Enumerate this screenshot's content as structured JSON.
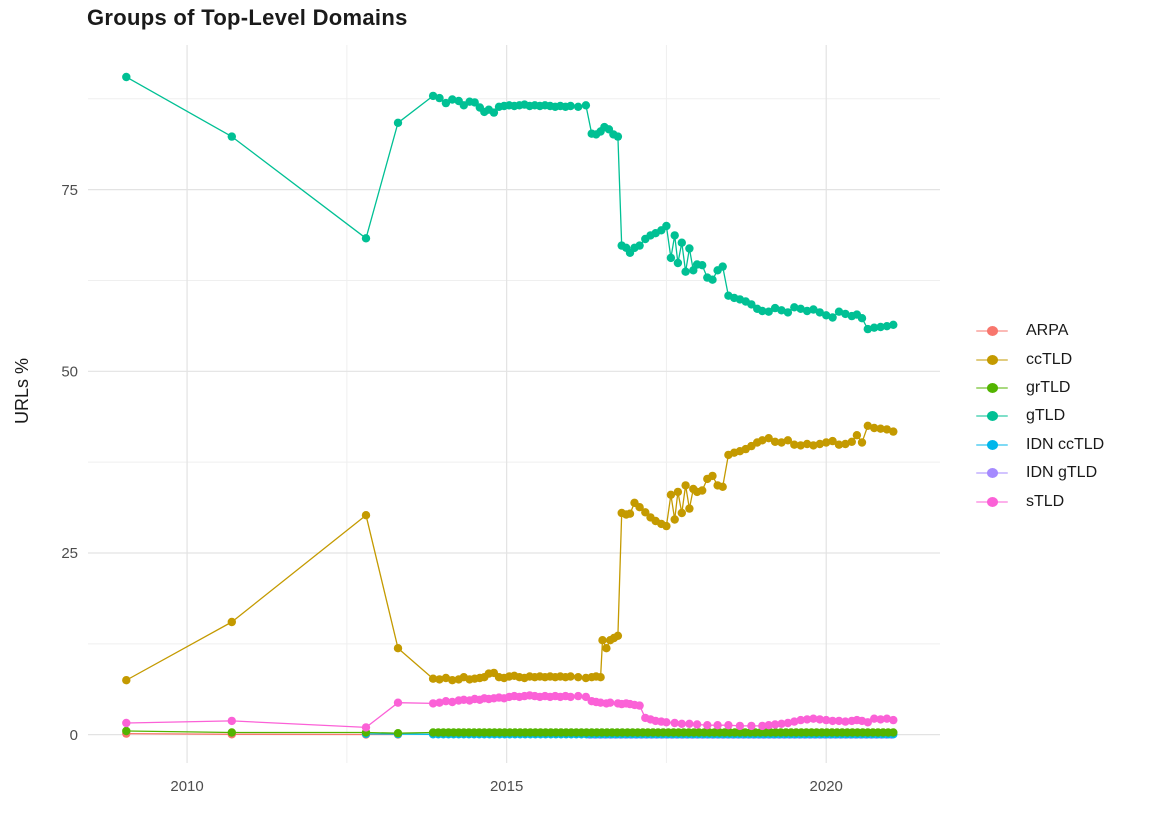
{
  "chart_data": {
    "type": "line",
    "title": "Groups of Top-Level Domains",
    "xlabel": "",
    "ylabel": "URLs %",
    "xlim": [
      2008.45,
      2021.78
    ],
    "ylim": [
      -3.9,
      94.9
    ],
    "grid": "major+minor",
    "legend_position": "right",
    "x_ticks": {
      "major": [
        2010,
        2015,
        2020
      ],
      "minor": [
        2012.5,
        2017.5
      ],
      "labels": [
        "2010",
        "2015",
        "2020"
      ]
    },
    "y_ticks": {
      "major": [
        0,
        25,
        50,
        75
      ],
      "minor": [
        12.5,
        37.5,
        62.5,
        87.5
      ],
      "labels": [
        "0",
        "25",
        "50",
        "75"
      ]
    },
    "legend_order": [
      "ARPA",
      "ccTLD",
      "grTLD",
      "gTLD",
      "IDN ccTLD",
      "IDN gTLD",
      "sTLD"
    ],
    "draw_order": [
      "ARPA",
      "IDN gTLD",
      "IDN ccTLD",
      "grTLD",
      "sTLD",
      "ccTLD",
      "gTLD"
    ],
    "series": [
      {
        "label": "ARPA",
        "color": "#F8766D",
        "points": [
          [
            2009.05,
            0.15
          ],
          [
            2010.7,
            0.05
          ],
          [
            2012.8,
            0.02
          ],
          [
            2013.3,
            0.02
          ]
        ]
      },
      {
        "label": "ccTLD",
        "color": "#C49A00",
        "points": [
          [
            2009.05,
            7.5
          ],
          [
            2010.7,
            15.5
          ],
          [
            2012.8,
            30.2
          ],
          [
            2013.3,
            11.9
          ],
          [
            2013.85,
            7.7
          ],
          [
            2013.95,
            7.6
          ],
          [
            2014.05,
            7.8
          ],
          [
            2014.15,
            7.5
          ],
          [
            2014.25,
            7.6
          ],
          [
            2014.33,
            7.9
          ],
          [
            2014.42,
            7.6
          ],
          [
            2014.5,
            7.7
          ],
          [
            2014.58,
            7.8
          ],
          [
            2014.65,
            7.9
          ],
          [
            2014.72,
            8.4
          ],
          [
            2014.8,
            8.5
          ],
          [
            2014.88,
            7.9
          ],
          [
            2014.96,
            7.8
          ],
          [
            2015.04,
            8.0
          ],
          [
            2015.12,
            8.1
          ],
          [
            2015.2,
            7.9
          ],
          [
            2015.28,
            7.8
          ],
          [
            2015.36,
            8.0
          ],
          [
            2015.44,
            7.9
          ],
          [
            2015.52,
            8.0
          ],
          [
            2015.6,
            7.9
          ],
          [
            2015.68,
            8.0
          ],
          [
            2015.76,
            7.9
          ],
          [
            2015.84,
            8.0
          ],
          [
            2015.92,
            7.9
          ],
          [
            2016.0,
            8.0
          ],
          [
            2016.12,
            7.9
          ],
          [
            2016.24,
            7.8
          ],
          [
            2016.33,
            7.9
          ],
          [
            2016.4,
            8.0
          ],
          [
            2016.47,
            7.9
          ],
          [
            2016.5,
            13.0
          ],
          [
            2016.56,
            11.9
          ],
          [
            2016.62,
            13.0
          ],
          [
            2016.68,
            13.3
          ],
          [
            2016.74,
            13.6
          ],
          [
            2016.8,
            30.5
          ],
          [
            2016.87,
            30.3
          ],
          [
            2016.93,
            30.4
          ],
          [
            2017.0,
            31.9
          ],
          [
            2017.08,
            31.3
          ],
          [
            2017.17,
            30.6
          ],
          [
            2017.25,
            29.9
          ],
          [
            2017.33,
            29.4
          ],
          [
            2017.42,
            29.0
          ],
          [
            2017.5,
            28.7
          ],
          [
            2017.57,
            33.0
          ],
          [
            2017.63,
            29.6
          ],
          [
            2017.68,
            33.4
          ],
          [
            2017.74,
            30.5
          ],
          [
            2017.8,
            34.3
          ],
          [
            2017.86,
            31.1
          ],
          [
            2017.92,
            33.8
          ],
          [
            2017.98,
            33.4
          ],
          [
            2018.06,
            33.6
          ],
          [
            2018.14,
            35.2
          ],
          [
            2018.22,
            35.6
          ],
          [
            2018.3,
            34.3
          ],
          [
            2018.38,
            34.1
          ],
          [
            2018.47,
            38.5
          ],
          [
            2018.56,
            38.8
          ],
          [
            2018.65,
            39.0
          ],
          [
            2018.74,
            39.3
          ],
          [
            2018.83,
            39.7
          ],
          [
            2018.92,
            40.2
          ],
          [
            2019.0,
            40.5
          ],
          [
            2019.1,
            40.8
          ],
          [
            2019.2,
            40.3
          ],
          [
            2019.3,
            40.2
          ],
          [
            2019.4,
            40.5
          ],
          [
            2019.5,
            39.9
          ],
          [
            2019.6,
            39.8
          ],
          [
            2019.7,
            40.0
          ],
          [
            2019.8,
            39.8
          ],
          [
            2019.9,
            40.0
          ],
          [
            2020.0,
            40.2
          ],
          [
            2020.1,
            40.4
          ],
          [
            2020.2,
            39.9
          ],
          [
            2020.3,
            40.0
          ],
          [
            2020.4,
            40.3
          ],
          [
            2020.48,
            41.2
          ],
          [
            2020.56,
            40.2
          ],
          [
            2020.65,
            42.5
          ],
          [
            2020.75,
            42.2
          ],
          [
            2020.85,
            42.1
          ],
          [
            2020.95,
            42.0
          ],
          [
            2021.05,
            41.7
          ]
        ]
      },
      {
        "label": "grTLD",
        "color": "#53B400",
        "points": [
          [
            2009.05,
            0.5
          ],
          [
            2010.7,
            0.3
          ],
          [
            2012.8,
            0.3
          ],
          [
            2013.3,
            0.2
          ]
        ],
        "runs": [
          {
            "from": 2013.85,
            "to": 2021.05,
            "step": 0.08,
            "value": 0.3
          }
        ]
      },
      {
        "label": "gTLD",
        "color": "#00C094",
        "points": [
          [
            2009.05,
            90.5
          ],
          [
            2010.7,
            82.3
          ],
          [
            2012.8,
            68.3
          ],
          [
            2013.3,
            84.2
          ],
          [
            2013.85,
            87.9
          ],
          [
            2013.95,
            87.6
          ],
          [
            2014.05,
            86.9
          ],
          [
            2014.15,
            87.4
          ],
          [
            2014.25,
            87.2
          ],
          [
            2014.33,
            86.6
          ],
          [
            2014.42,
            87.1
          ],
          [
            2014.5,
            87.0
          ],
          [
            2014.58,
            86.3
          ],
          [
            2014.65,
            85.7
          ],
          [
            2014.72,
            86.0
          ],
          [
            2014.8,
            85.6
          ],
          [
            2014.88,
            86.4
          ],
          [
            2014.96,
            86.5
          ],
          [
            2015.04,
            86.6
          ],
          [
            2015.12,
            86.5
          ],
          [
            2015.2,
            86.6
          ],
          [
            2015.28,
            86.7
          ],
          [
            2015.36,
            86.5
          ],
          [
            2015.44,
            86.6
          ],
          [
            2015.52,
            86.5
          ],
          [
            2015.6,
            86.6
          ],
          [
            2015.68,
            86.5
          ],
          [
            2015.76,
            86.4
          ],
          [
            2015.84,
            86.5
          ],
          [
            2015.92,
            86.4
          ],
          [
            2016.0,
            86.5
          ],
          [
            2016.12,
            86.4
          ],
          [
            2016.24,
            86.6
          ],
          [
            2016.33,
            82.7
          ],
          [
            2016.4,
            82.6
          ],
          [
            2016.47,
            83.0
          ],
          [
            2016.53,
            83.6
          ],
          [
            2016.6,
            83.3
          ],
          [
            2016.67,
            82.6
          ],
          [
            2016.74,
            82.3
          ],
          [
            2016.8,
            67.3
          ],
          [
            2016.87,
            67.0
          ],
          [
            2016.93,
            66.3
          ],
          [
            2017.0,
            67.0
          ],
          [
            2017.08,
            67.3
          ],
          [
            2017.17,
            68.2
          ],
          [
            2017.25,
            68.7
          ],
          [
            2017.33,
            69.0
          ],
          [
            2017.42,
            69.4
          ],
          [
            2017.5,
            70.0
          ],
          [
            2017.57,
            65.6
          ],
          [
            2017.63,
            68.7
          ],
          [
            2017.68,
            64.9
          ],
          [
            2017.74,
            67.7
          ],
          [
            2017.8,
            63.7
          ],
          [
            2017.86,
            66.9
          ],
          [
            2017.92,
            63.9
          ],
          [
            2017.98,
            64.7
          ],
          [
            2018.06,
            64.6
          ],
          [
            2018.14,
            62.9
          ],
          [
            2018.22,
            62.6
          ],
          [
            2018.3,
            63.9
          ],
          [
            2018.38,
            64.4
          ],
          [
            2018.47,
            60.4
          ],
          [
            2018.56,
            60.1
          ],
          [
            2018.65,
            59.9
          ],
          [
            2018.74,
            59.6
          ],
          [
            2018.83,
            59.2
          ],
          [
            2018.92,
            58.6
          ],
          [
            2019.0,
            58.3
          ],
          [
            2019.1,
            58.2
          ],
          [
            2019.2,
            58.7
          ],
          [
            2019.3,
            58.4
          ],
          [
            2019.4,
            58.1
          ],
          [
            2019.5,
            58.8
          ],
          [
            2019.6,
            58.6
          ],
          [
            2019.7,
            58.3
          ],
          [
            2019.8,
            58.5
          ],
          [
            2019.9,
            58.1
          ],
          [
            2020.0,
            57.7
          ],
          [
            2020.1,
            57.4
          ],
          [
            2020.2,
            58.2
          ],
          [
            2020.3,
            57.9
          ],
          [
            2020.4,
            57.6
          ],
          [
            2020.48,
            57.8
          ],
          [
            2020.56,
            57.3
          ],
          [
            2020.65,
            55.8
          ],
          [
            2020.75,
            56.0
          ],
          [
            2020.85,
            56.1
          ],
          [
            2020.95,
            56.2
          ],
          [
            2021.05,
            56.4
          ]
        ]
      },
      {
        "label": "IDN ccTLD",
        "color": "#00B6EB",
        "points": [
          [
            2012.8,
            0.1
          ],
          [
            2013.3,
            0.08
          ]
        ],
        "runs": [
          {
            "from": 2013.85,
            "to": 2021.05,
            "step": 0.08,
            "value": 0.05
          }
        ]
      },
      {
        "label": "IDN gTLD",
        "color": "#A58AFF",
        "points": [],
        "runs": [
          {
            "from": 2016.3,
            "to": 2021.05,
            "step": 0.08,
            "value": 0.0
          }
        ]
      },
      {
        "label": "sTLD",
        "color": "#FB61D7",
        "points": [
          [
            2009.05,
            1.6
          ],
          [
            2010.7,
            1.9
          ],
          [
            2012.8,
            1.0
          ],
          [
            2013.3,
            4.4
          ],
          [
            2013.85,
            4.3
          ],
          [
            2013.95,
            4.4
          ],
          [
            2014.05,
            4.6
          ],
          [
            2014.15,
            4.5
          ],
          [
            2014.25,
            4.7
          ],
          [
            2014.33,
            4.8
          ],
          [
            2014.42,
            4.7
          ],
          [
            2014.5,
            4.9
          ],
          [
            2014.58,
            4.8
          ],
          [
            2014.65,
            5.0
          ],
          [
            2014.72,
            4.9
          ],
          [
            2014.8,
            5.0
          ],
          [
            2014.88,
            5.1
          ],
          [
            2014.96,
            5.0
          ],
          [
            2015.04,
            5.2
          ],
          [
            2015.12,
            5.3
          ],
          [
            2015.2,
            5.2
          ],
          [
            2015.28,
            5.3
          ],
          [
            2015.36,
            5.4
          ],
          [
            2015.44,
            5.3
          ],
          [
            2015.52,
            5.2
          ],
          [
            2015.6,
            5.3
          ],
          [
            2015.68,
            5.2
          ],
          [
            2015.76,
            5.3
          ],
          [
            2015.84,
            5.2
          ],
          [
            2015.92,
            5.3
          ],
          [
            2016.0,
            5.2
          ],
          [
            2016.12,
            5.3
          ],
          [
            2016.24,
            5.2
          ],
          [
            2016.33,
            4.6
          ],
          [
            2016.4,
            4.5
          ],
          [
            2016.47,
            4.4
          ],
          [
            2016.56,
            4.3
          ],
          [
            2016.62,
            4.4
          ],
          [
            2016.74,
            4.3
          ],
          [
            2016.8,
            4.2
          ],
          [
            2016.87,
            4.3
          ],
          [
            2016.93,
            4.2
          ],
          [
            2017.0,
            4.1
          ],
          [
            2017.08,
            4.0
          ],
          [
            2017.17,
            2.3
          ],
          [
            2017.25,
            2.1
          ],
          [
            2017.33,
            1.9
          ],
          [
            2017.42,
            1.8
          ],
          [
            2017.5,
            1.7
          ],
          [
            2017.63,
            1.6
          ],
          [
            2017.74,
            1.5
          ],
          [
            2017.86,
            1.5
          ],
          [
            2017.98,
            1.4
          ],
          [
            2018.14,
            1.3
          ],
          [
            2018.3,
            1.3
          ],
          [
            2018.47,
            1.3
          ],
          [
            2018.65,
            1.2
          ],
          [
            2018.83,
            1.2
          ],
          [
            2019.0,
            1.2
          ],
          [
            2019.1,
            1.3
          ],
          [
            2019.2,
            1.4
          ],
          [
            2019.3,
            1.5
          ],
          [
            2019.4,
            1.6
          ],
          [
            2019.5,
            1.8
          ],
          [
            2019.6,
            2.0
          ],
          [
            2019.7,
            2.1
          ],
          [
            2019.8,
            2.2
          ],
          [
            2019.9,
            2.1
          ],
          [
            2020.0,
            2.0
          ],
          [
            2020.1,
            1.9
          ],
          [
            2020.2,
            1.9
          ],
          [
            2020.3,
            1.8
          ],
          [
            2020.4,
            1.9
          ],
          [
            2020.48,
            2.0
          ],
          [
            2020.56,
            1.9
          ],
          [
            2020.65,
            1.7
          ],
          [
            2020.75,
            2.2
          ],
          [
            2020.85,
            2.1
          ],
          [
            2020.95,
            2.2
          ],
          [
            2021.05,
            2.0
          ]
        ]
      }
    ],
    "style": {
      "grid_major_color": "#E3E3E3",
      "grid_minor_color": "#EFEFEF",
      "tick_label_color": "#4d4d4d",
      "marker_radius": 4.2,
      "line_width": 1.3
    }
  }
}
